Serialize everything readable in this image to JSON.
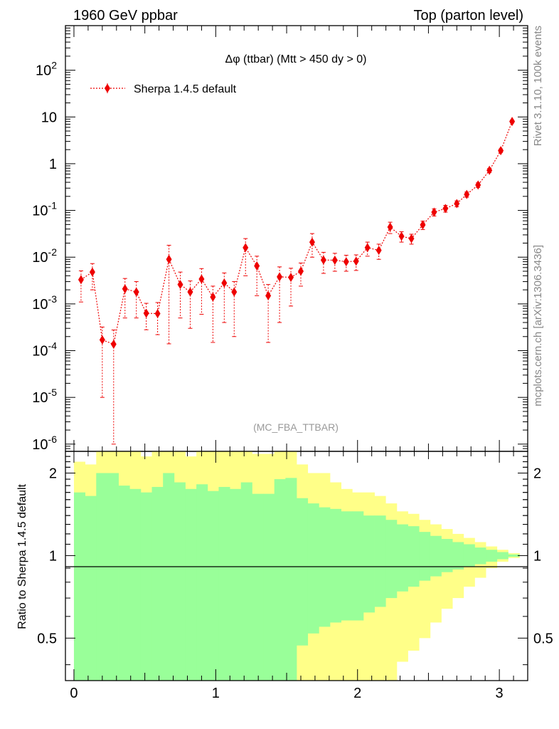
{
  "header": {
    "left": "1960 GeV ppbar",
    "right": "Top (parton level)"
  },
  "side_labels": {
    "top": "Rivet 3.1.10,  100k events",
    "bottom": "mcplots.cern.ch [arXiv:1306.3436]"
  },
  "analysis_label": "(MC_FBA_TTBAR)",
  "colors": {
    "series": "#ee0000",
    "band_inner": "#99ff99",
    "band_outer": "#ffff88"
  },
  "chart_data": [
    {
      "type": "scatter",
      "title": "Δφ (ttbar) (Mtt > 450 dy > 0)",
      "xlabel": "",
      "ylabel": "",
      "xlim": [
        -0.06,
        3.2
      ],
      "ylim": [
        7e-07,
        900
      ],
      "yscale": "log",
      "legend_position": "top-left",
      "series": [
        {
          "name": "Sherpa 1.4.5 default",
          "x": [
            0.05,
            0.13,
            0.2,
            0.28,
            0.36,
            0.44,
            0.51,
            0.59,
            0.67,
            0.75,
            0.82,
            0.9,
            0.98,
            1.06,
            1.13,
            1.21,
            1.29,
            1.37,
            1.45,
            1.53,
            1.6,
            1.68,
            1.76,
            1.84,
            1.92,
            1.99,
            2.07,
            2.15,
            2.23,
            2.31,
            2.38,
            2.46,
            2.54,
            2.62,
            2.7,
            2.77,
            2.85,
            2.93,
            3.01,
            3.09
          ],
          "y": [
            0.0033,
            0.0048,
            0.00017,
            0.000137,
            0.0021,
            0.0018,
            0.00063,
            0.00062,
            0.009,
            0.0026,
            0.0018,
            0.0034,
            0.0014,
            0.0028,
            0.0018,
            0.016,
            0.0065,
            0.0015,
            0.0038,
            0.0037,
            0.005,
            0.021,
            0.0087,
            0.0086,
            0.008,
            0.0082,
            0.016,
            0.014,
            0.044,
            0.028,
            0.025,
            0.049,
            0.092,
            0.11,
            0.14,
            0.22,
            0.35,
            0.72,
            1.9,
            8.0
          ],
          "y_err_up": [
            0.0018,
            0.0025,
            0.00015,
            0.00014,
            0.0014,
            0.0012,
            0.0004,
            0.00045,
            0.009,
            0.0022,
            0.0013,
            0.0023,
            0.001,
            0.0018,
            0.0012,
            0.009,
            0.004,
            0.0011,
            0.0024,
            0.0021,
            0.0025,
            0.011,
            0.004,
            0.0035,
            0.003,
            0.003,
            0.005,
            0.005,
            0.012,
            0.007,
            0.006,
            0.01,
            0.016,
            0.018,
            0.02,
            0.028,
            0.04,
            0.07,
            0.16,
            0.55
          ],
          "y_err_down": [
            0.0022,
            0.0028,
            0.00016,
            0.000136,
            0.0016,
            0.0013,
            0.00035,
            0.0004,
            0.00886,
            0.0021,
            0.0015,
            0.0028,
            0.00125,
            0.0024,
            0.0016,
            0.012,
            0.005,
            0.00135,
            0.0034,
            0.0028,
            0.0026,
            0.011,
            0.0042,
            0.0036,
            0.003,
            0.003,
            0.0055,
            0.005,
            0.012,
            0.007,
            0.006,
            0.01,
            0.016,
            0.018,
            0.02,
            0.028,
            0.04,
            0.07,
            0.16,
            0.55
          ]
        }
      ]
    },
    {
      "type": "area",
      "title": "",
      "xlabel": "",
      "ylabel": "Ratio to Sherpa 1.4.5 default",
      "xlim": [
        -0.06,
        3.2
      ],
      "ylim": [
        0.35,
        2.4
      ],
      "yscale": "log",
      "reference_line": 1,
      "bin_edges": [
        0.0,
        0.0785,
        0.157,
        0.2355,
        0.314,
        0.3925,
        0.471,
        0.5495,
        0.628,
        0.7065,
        0.785,
        0.8635,
        0.942,
        1.0205,
        1.099,
        1.1775,
        1.256,
        1.3345,
        1.413,
        1.4915,
        1.57,
        1.6485,
        1.727,
        1.8055,
        1.884,
        1.9625,
        2.041,
        2.1195,
        2.198,
        2.2765,
        2.355,
        2.4335,
        2.512,
        2.5905,
        2.669,
        2.7475,
        2.826,
        2.9045,
        2.983,
        3.0615,
        3.1416
      ],
      "inner_band": {
        "upper": [
          1.7,
          1.65,
          2.0,
          2.0,
          1.8,
          1.75,
          1.7,
          1.78,
          2.0,
          1.85,
          1.75,
          1.82,
          1.72,
          1.78,
          1.75,
          1.85,
          1.68,
          1.68,
          1.9,
          1.92,
          1.62,
          1.55,
          1.5,
          1.48,
          1.45,
          1.45,
          1.4,
          1.4,
          1.35,
          1.3,
          1.28,
          1.22,
          1.18,
          1.15,
          1.12,
          1.1,
          1.07,
          1.05,
          1.03,
          1.01
        ],
        "lower": [
          0.35,
          0.35,
          0.35,
          0.35,
          0.35,
          0.35,
          0.35,
          0.35,
          0.35,
          0.35,
          0.35,
          0.35,
          0.35,
          0.35,
          0.35,
          0.35,
          0.35,
          0.35,
          0.35,
          0.35,
          0.47,
          0.52,
          0.55,
          0.57,
          0.58,
          0.58,
          0.62,
          0.65,
          0.7,
          0.74,
          0.77,
          0.81,
          0.84,
          0.87,
          0.89,
          0.91,
          0.93,
          0.95,
          0.97,
          0.99
        ]
      },
      "outer_band": {
        "upper": [
          2.2,
          2.15,
          2.4,
          2.4,
          2.4,
          2.4,
          2.3,
          2.4,
          2.4,
          2.4,
          2.3,
          2.4,
          2.4,
          2.4,
          2.4,
          2.4,
          2.35,
          2.35,
          2.4,
          2.4,
          2.15,
          2.0,
          2.0,
          1.85,
          1.75,
          1.7,
          1.7,
          1.65,
          1.55,
          1.45,
          1.42,
          1.35,
          1.3,
          1.25,
          1.2,
          1.16,
          1.12,
          1.08,
          1.05,
          1.02
        ],
        "lower": [
          0.35,
          0.35,
          0.35,
          0.35,
          0.35,
          0.35,
          0.35,
          0.35,
          0.35,
          0.35,
          0.35,
          0.35,
          0.35,
          0.35,
          0.35,
          0.35,
          0.35,
          0.35,
          0.35,
          0.35,
          0.35,
          0.35,
          0.35,
          0.35,
          0.35,
          0.35,
          0.35,
          0.35,
          0.35,
          0.41,
          0.45,
          0.5,
          0.57,
          0.64,
          0.7,
          0.77,
          0.83,
          0.9,
          0.95,
          0.98
        ]
      }
    }
  ]
}
